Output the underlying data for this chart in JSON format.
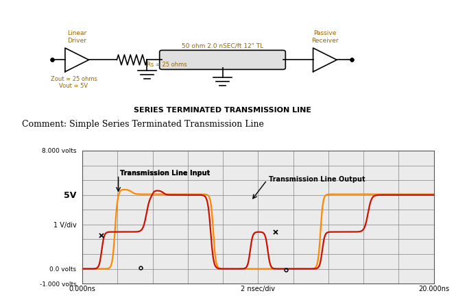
{
  "title_schematic": "SERIES TERMINATED TRANSMISSION LINE",
  "comment": "Comment: Simple Series Terminated Transmission Line",
  "ylabel_left_top": "8.000 volts",
  "ylabel_5v": "5V",
  "ylabel_1vdiv": "1 V/div",
  "ylabel_0v": "0.0 volts",
  "ylabel_neg1v": "-1.000 volts",
  "xlabel_left": "0.000ns",
  "xlabel_mid": "2 nsec/div",
  "xlabel_right": "20.000ns",
  "label_input": "Transmission Line Input",
  "label_output": "Transmission Line Output",
  "color_input": "#FF8800",
  "color_output": "#CC1100",
  "bg_color": "#FFFFFF",
  "grid_color": "#888888",
  "plot_bg": "#EBEBEB",
  "x_min": 0,
  "x_max": 20,
  "y_min": -1.0,
  "y_max": 8.0,
  "schematic_labels": {
    "linear_driver": "Linear\nDriver",
    "passive_receiver": "Passive\nReceiver",
    "tl_label": "50 ohm 2.0 nSEC/ft 12\" TL",
    "zout": "Zout = 25 ohms\nVout = 5V",
    "rs": "Rs = 25 ohms"
  }
}
